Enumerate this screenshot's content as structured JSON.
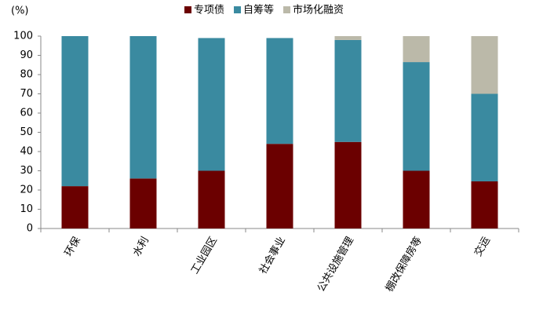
{
  "chart_data": {
    "type": "stacked_bar",
    "y_label": "(%)",
    "categories": [
      "环保",
      "水利",
      "工业园区",
      "社会事业",
      "公共设施管理",
      "棚改保障房等",
      "交运"
    ],
    "series": [
      {
        "name": "专项债",
        "color": "#6b0000",
        "values": [
          22,
          26,
          30,
          44,
          45,
          30,
          24.5
        ]
      },
      {
        "name": "自筹等",
        "color": "#3a8aa0",
        "values": [
          78,
          74,
          69,
          55,
          53,
          56.5,
          45.5
        ]
      },
      {
        "name": "市场化融资",
        "color": "#bbb9a9",
        "values": [
          0,
          0,
          0,
          0,
          2,
          13.5,
          30
        ]
      }
    ],
    "ylim": [
      0,
      100
    ],
    "yticks": [
      0,
      10,
      20,
      30,
      40,
      50,
      60,
      70,
      80,
      90,
      100
    ],
    "legend": "top"
  }
}
